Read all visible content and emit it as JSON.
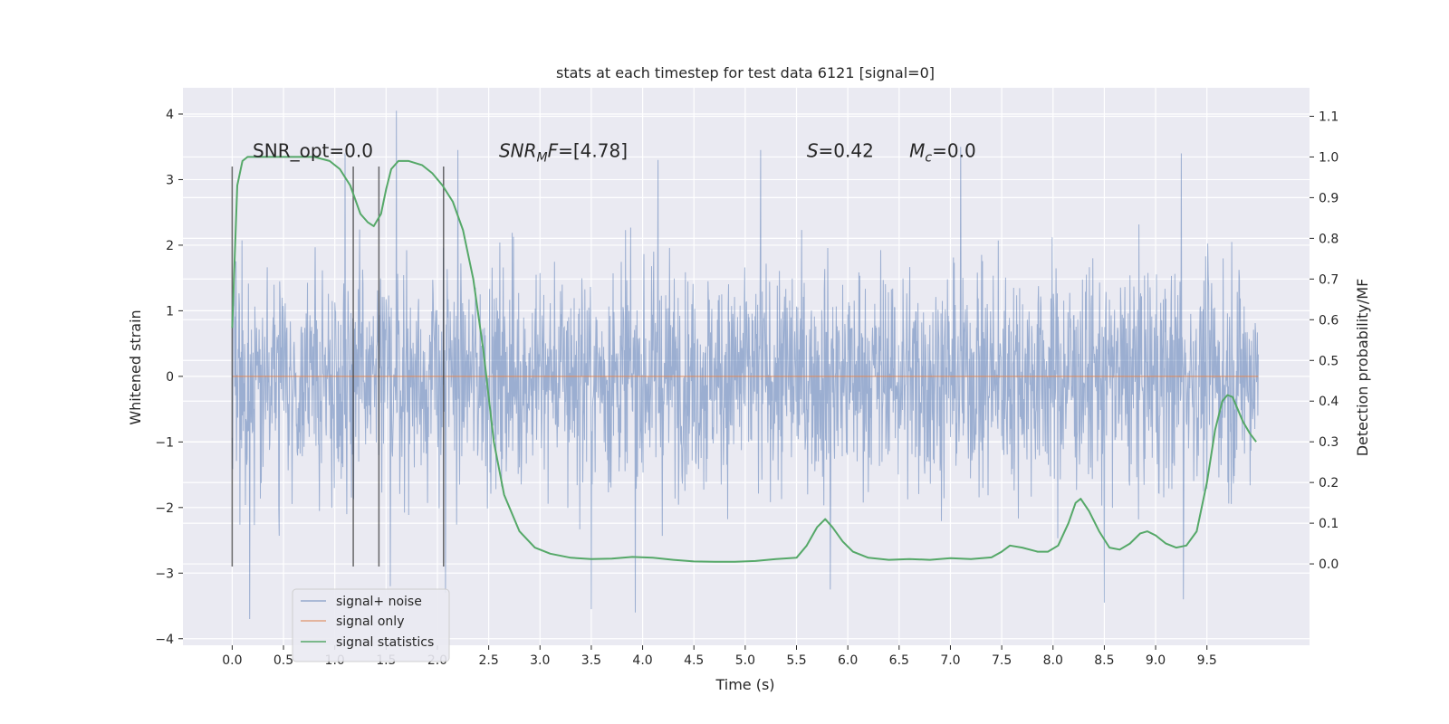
{
  "chart_data": {
    "type": "line",
    "title": "stats at each timestep for test data 6121 [signal=0]",
    "xlabel": "Time (s)",
    "ylabel_left": "Whitened strain",
    "ylabel_right": "Detection probability/MF",
    "xlim": [
      -0.48,
      10.5
    ],
    "ylim_left": [
      -4.1,
      4.4
    ],
    "ylim_right": [
      -0.2,
      1.17
    ],
    "x_ticks": [
      0.0,
      0.5,
      1.0,
      1.5,
      2.0,
      2.5,
      3.0,
      3.5,
      4.0,
      4.5,
      5.0,
      5.5,
      6.0,
      6.5,
      7.0,
      7.5,
      8.0,
      8.5,
      9.0,
      9.5
    ],
    "x_tick_labels": [
      "0.0",
      "0.5",
      "1.0",
      "1.5",
      "2.0",
      "2.5",
      "3.0",
      "3.5",
      "4.0",
      "4.5",
      "5.0",
      "5.5",
      "6.0",
      "6.5",
      "7.0",
      "7.5",
      "8.0",
      "8.5",
      "9.0",
      "9.5"
    ],
    "y_left_ticks": [
      4,
      3,
      2,
      1,
      0,
      -1,
      -2,
      -3,
      -4
    ],
    "y_left_tick_labels": [
      "4",
      "3",
      "2",
      "1",
      "0",
      "−1",
      "−2",
      "−3",
      "−4"
    ],
    "y_right_ticks": [
      1.1,
      1.0,
      0.9,
      0.8,
      0.7,
      0.6,
      0.5,
      0.4,
      0.3,
      0.2,
      0.1,
      0.0
    ],
    "y_right_tick_labels": [
      "1.1",
      "1.0",
      "0.9",
      "0.8",
      "0.7",
      "0.6",
      "0.5",
      "0.4",
      "0.3",
      "0.2",
      "0.1",
      "0.0"
    ],
    "grid": true,
    "legend_position": "lower-left",
    "annotations": [
      {
        "text": "SNR_opt=0.0",
        "x": 0.2,
        "y": 1.0
      },
      {
        "text": "SNR_M F=[4.78]",
        "x": 2.6,
        "y": 1.0
      },
      {
        "text": "S=0.42",
        "x": 5.6,
        "y": 1.0
      },
      {
        "text": "M_c=0.0",
        "x": 6.6,
        "y": 1.0
      }
    ],
    "vertical_markers": [
      {
        "x": 0.0,
        "ymin": -2.9,
        "ymax": 3.2
      },
      {
        "x": 1.18,
        "ymin": -2.9,
        "ymax": 3.2
      },
      {
        "x": 1.43,
        "ymin": -2.9,
        "ymax": 3.2
      },
      {
        "x": 2.06,
        "ymin": -2.9,
        "ymax": 3.2
      }
    ],
    "series": [
      {
        "name": "signal+ noise",
        "axis": "left",
        "color": "#4c72b0",
        "x_range": [
          0.0,
          10.0
        ],
        "typical_amplitude": 1.4,
        "peak_values": [
          {
            "x": 0.17,
            "y": -3.7
          },
          {
            "x": 1.1,
            "y": 3.4
          },
          {
            "x": 1.6,
            "y": 4.05
          },
          {
            "x": 1.54,
            "y": -3.2
          },
          {
            "x": 2.08,
            "y": -3.3
          },
          {
            "x": 2.2,
            "y": 3.45
          },
          {
            "x": 3.5,
            "y": -3.55
          },
          {
            "x": 4.15,
            "y": 3.3
          },
          {
            "x": 3.93,
            "y": -3.6
          },
          {
            "x": 5.15,
            "y": 3.45
          },
          {
            "x": 5.83,
            "y": -3.25
          },
          {
            "x": 7.1,
            "y": 3.5
          },
          {
            "x": 8.5,
            "y": -3.45
          },
          {
            "x": 9.25,
            "y": 3.4
          },
          {
            "x": 9.27,
            "y": -3.4
          }
        ]
      },
      {
        "name": "signal only",
        "axis": "left",
        "color": "#dd8452",
        "x": [
          0.0,
          10.0
        ],
        "y": [
          0.0,
          0.0
        ]
      },
      {
        "name": "signal statistics",
        "axis": "right",
        "color": "#55a868",
        "x": [
          0.0,
          0.05,
          0.1,
          0.15,
          0.25,
          0.4,
          0.6,
          0.8,
          0.95,
          1.05,
          1.15,
          1.25,
          1.32,
          1.38,
          1.45,
          1.5,
          1.55,
          1.62,
          1.72,
          1.85,
          1.95,
          2.05,
          2.15,
          2.25,
          2.35,
          2.45,
          2.55,
          2.65,
          2.8,
          2.95,
          3.1,
          3.3,
          3.5,
          3.7,
          3.9,
          4.1,
          4.3,
          4.5,
          4.7,
          4.9,
          5.1,
          5.3,
          5.5,
          5.6,
          5.7,
          5.78,
          5.85,
          5.95,
          6.05,
          6.2,
          6.4,
          6.6,
          6.8,
          7.0,
          7.2,
          7.4,
          7.5,
          7.58,
          7.7,
          7.85,
          7.95,
          8.05,
          8.15,
          8.22,
          8.27,
          8.35,
          8.45,
          8.55,
          8.65,
          8.75,
          8.85,
          8.92,
          9.0,
          9.1,
          9.2,
          9.3,
          9.4,
          9.5,
          9.58,
          9.65,
          9.7,
          9.75,
          9.8,
          9.85,
          9.92,
          9.98
        ],
        "y": [
          0.58,
          0.93,
          0.99,
          1.0,
          1.0,
          1.0,
          1.0,
          1.0,
          0.99,
          0.97,
          0.93,
          0.86,
          0.84,
          0.83,
          0.86,
          0.92,
          0.97,
          0.99,
          0.99,
          0.98,
          0.96,
          0.93,
          0.89,
          0.82,
          0.7,
          0.52,
          0.3,
          0.17,
          0.08,
          0.04,
          0.025,
          0.015,
          0.012,
          0.013,
          0.017,
          0.015,
          0.01,
          0.006,
          0.005,
          0.005,
          0.007,
          0.012,
          0.015,
          0.045,
          0.09,
          0.11,
          0.09,
          0.055,
          0.03,
          0.015,
          0.01,
          0.012,
          0.01,
          0.014,
          0.012,
          0.016,
          0.03,
          0.045,
          0.04,
          0.03,
          0.03,
          0.045,
          0.1,
          0.15,
          0.16,
          0.13,
          0.08,
          0.04,
          0.035,
          0.05,
          0.075,
          0.08,
          0.07,
          0.05,
          0.04,
          0.045,
          0.08,
          0.2,
          0.33,
          0.4,
          0.415,
          0.41,
          0.38,
          0.35,
          0.32,
          0.3
        ]
      }
    ]
  }
}
